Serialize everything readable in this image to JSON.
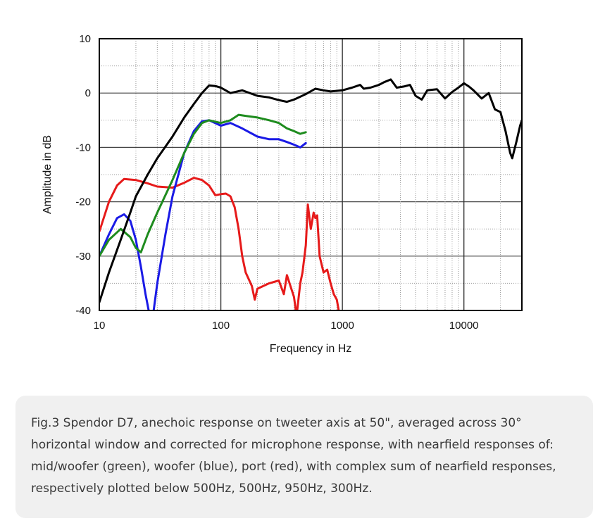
{
  "chart_data": {
    "type": "line",
    "title": "",
    "xlabel": "Frequency in Hz",
    "ylabel": "Amplitude in dB",
    "xscale": "log",
    "xlim": [
      10,
      30000
    ],
    "ylim": [
      -40,
      10
    ],
    "grid": true,
    "x_ticks": [
      10,
      100,
      1000,
      10000
    ],
    "x_tick_labels": [
      "10",
      "100",
      "1000",
      "10000"
    ],
    "y_ticks": [
      10,
      0,
      -10,
      -20,
      -30,
      -40
    ],
    "y_tick_labels": [
      "10",
      "0",
      "-10",
      "-20",
      "-30",
      "-40"
    ],
    "series": [
      {
        "name": "anechoic tweeter-axis response",
        "color": "#000000",
        "points": [
          [
            10,
            -38.5
          ],
          [
            12,
            -33
          ],
          [
            15,
            -27
          ],
          [
            18,
            -22
          ],
          [
            20,
            -19
          ],
          [
            25,
            -15
          ],
          [
            30,
            -12
          ],
          [
            40,
            -8
          ],
          [
            50,
            -4.5
          ],
          [
            60,
            -2
          ],
          [
            70,
            0
          ],
          [
            80,
            1.4
          ],
          [
            90,
            1.3
          ],
          [
            100,
            1
          ],
          [
            120,
            0
          ],
          [
            150,
            0.5
          ],
          [
            200,
            -0.5
          ],
          [
            250,
            -0.8
          ],
          [
            300,
            -1.3
          ],
          [
            350,
            -1.6
          ],
          [
            400,
            -1.2
          ],
          [
            500,
            -0.2
          ],
          [
            600,
            0.8
          ],
          [
            700,
            0.5
          ],
          [
            800,
            0.3
          ],
          [
            1000,
            0.5
          ],
          [
            1200,
            1
          ],
          [
            1400,
            1.5
          ],
          [
            1500,
            0.8
          ],
          [
            1700,
            1
          ],
          [
            2000,
            1.5
          ],
          [
            2200,
            2
          ],
          [
            2500,
            2.5
          ],
          [
            2800,
            1
          ],
          [
            3200,
            1.2
          ],
          [
            3600,
            1.5
          ],
          [
            4000,
            -0.5
          ],
          [
            4500,
            -1.2
          ],
          [
            5000,
            0.5
          ],
          [
            6000,
            0.7
          ],
          [
            7000,
            -1
          ],
          [
            8000,
            0.2
          ],
          [
            9000,
            1
          ],
          [
            10000,
            1.8
          ],
          [
            11000,
            1.2
          ],
          [
            12000,
            0.5
          ],
          [
            14000,
            -1
          ],
          [
            16000,
            0
          ],
          [
            18000,
            -3
          ],
          [
            20000,
            -3.5
          ],
          [
            22000,
            -7
          ],
          [
            24000,
            -11
          ],
          [
            25000,
            -12
          ],
          [
            27000,
            -9
          ],
          [
            29000,
            -6
          ],
          [
            30000,
            -5
          ]
        ]
      },
      {
        "name": "mid/woofer",
        "color": "#1e8c1e",
        "points": [
          [
            10,
            -30
          ],
          [
            12,
            -27
          ],
          [
            15,
            -25
          ],
          [
            18,
            -26.5
          ],
          [
            20,
            -28.5
          ],
          [
            22,
            -29.3
          ],
          [
            25,
            -26
          ],
          [
            30,
            -22
          ],
          [
            40,
            -16
          ],
          [
            50,
            -11
          ],
          [
            60,
            -7.5
          ],
          [
            70,
            -5.5
          ],
          [
            80,
            -5
          ],
          [
            100,
            -5.5
          ],
          [
            120,
            -5
          ],
          [
            140,
            -4
          ],
          [
            160,
            -4.2
          ],
          [
            200,
            -4.5
          ],
          [
            250,
            -5
          ],
          [
            300,
            -5.5
          ],
          [
            350,
            -6.5
          ],
          [
            400,
            -7
          ],
          [
            450,
            -7.5
          ],
          [
            500,
            -7.2
          ]
        ]
      },
      {
        "name": "woofer",
        "color": "#1a1ae6",
        "points": [
          [
            10,
            -30
          ],
          [
            12,
            -26
          ],
          [
            14,
            -23
          ],
          [
            16,
            -22.3
          ],
          [
            18,
            -23.5
          ],
          [
            20,
            -27
          ],
          [
            22,
            -32
          ],
          [
            24,
            -37
          ],
          [
            26,
            -41
          ],
          [
            28,
            -40
          ],
          [
            30,
            -35
          ],
          [
            35,
            -26
          ],
          [
            40,
            -19
          ],
          [
            50,
            -11
          ],
          [
            60,
            -7
          ],
          [
            70,
            -5.2
          ],
          [
            80,
            -5
          ],
          [
            100,
            -6
          ],
          [
            120,
            -5.5
          ],
          [
            150,
            -6.5
          ],
          [
            200,
            -8
          ],
          [
            250,
            -8.5
          ],
          [
            300,
            -8.5
          ],
          [
            350,
            -9
          ],
          [
            400,
            -9.5
          ],
          [
            450,
            -10
          ],
          [
            500,
            -9.2
          ]
        ]
      },
      {
        "name": "port",
        "color": "#e61a1a",
        "points": [
          [
            10,
            -25.5
          ],
          [
            12,
            -20
          ],
          [
            14,
            -17
          ],
          [
            16,
            -15.8
          ],
          [
            20,
            -16
          ],
          [
            25,
            -16.6
          ],
          [
            30,
            -17.2
          ],
          [
            40,
            -17.4
          ],
          [
            50,
            -16.5
          ],
          [
            60,
            -15.6
          ],
          [
            70,
            -16
          ],
          [
            80,
            -17
          ],
          [
            90,
            -18.8
          ],
          [
            100,
            -18.6
          ],
          [
            110,
            -18.5
          ],
          [
            120,
            -19
          ],
          [
            130,
            -21
          ],
          [
            140,
            -25
          ],
          [
            150,
            -30
          ],
          [
            160,
            -33
          ],
          [
            180,
            -35.5
          ],
          [
            190,
            -38
          ],
          [
            200,
            -36
          ],
          [
            250,
            -35
          ],
          [
            300,
            -34.5
          ],
          [
            330,
            -37
          ],
          [
            350,
            -33.5
          ],
          [
            380,
            -36
          ],
          [
            400,
            -37.5
          ],
          [
            420,
            -41
          ],
          [
            450,
            -35
          ],
          [
            470,
            -33
          ],
          [
            500,
            -28
          ],
          [
            520,
            -20.5
          ],
          [
            550,
            -25
          ],
          [
            580,
            -22
          ],
          [
            600,
            -23
          ],
          [
            620,
            -22.5
          ],
          [
            650,
            -30
          ],
          [
            700,
            -33
          ],
          [
            750,
            -32.5
          ],
          [
            800,
            -35
          ],
          [
            850,
            -37
          ],
          [
            900,
            -38
          ],
          [
            950,
            -41
          ]
        ]
      }
    ]
  },
  "caption": "Fig.3 Spendor D7, anechoic response on tweeter axis at 50\", averaged across 30° horizontal window and corrected for microphone response, with nearfield responses of: mid/woofer (green), woofer (blue), port (red), with complex sum of nearfield responses, respectively plotted below 500Hz, 500Hz, 950Hz, 300Hz."
}
